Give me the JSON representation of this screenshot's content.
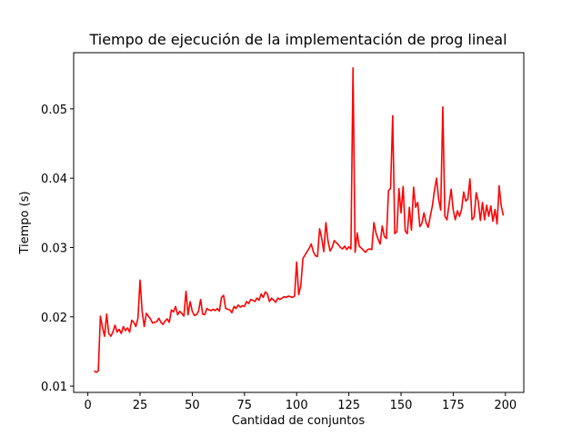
{
  "chart_data": {
    "type": "line",
    "title": "Tiempo de ejecución de la implementación de prog lineal",
    "xlabel": "Cantidad de conjuntos",
    "ylabel": "Tiempo (s)",
    "xlim": [
      -6.8,
      208.8
    ],
    "ylim": [
      0.0091,
      0.0581
    ],
    "xticks": [
      0,
      25,
      50,
      75,
      100,
      125,
      150,
      175,
      200
    ],
    "yticks": [
      0.01,
      0.02,
      0.03,
      0.04,
      0.05
    ],
    "series": [
      {
        "color": "#ff0000",
        "x": [
          3,
          4,
          5,
          6,
          7,
          8,
          9,
          10,
          11,
          12,
          13,
          14,
          15,
          16,
          17,
          18,
          19,
          20,
          21,
          22,
          23,
          24,
          25,
          26,
          27,
          28,
          29,
          30,
          31,
          32,
          33,
          34,
          35,
          36,
          37,
          38,
          39,
          40,
          41,
          42,
          43,
          44,
          45,
          46,
          47,
          48,
          49,
          50,
          51,
          52,
          53,
          54,
          55,
          56,
          57,
          58,
          59,
          60,
          61,
          62,
          63,
          64,
          65,
          66,
          67,
          68,
          69,
          70,
          71,
          72,
          73,
          74,
          75,
          76,
          77,
          78,
          79,
          80,
          81,
          82,
          83,
          84,
          85,
          86,
          87,
          88,
          89,
          90,
          91,
          92,
          93,
          94,
          95,
          96,
          97,
          98,
          99,
          100,
          101,
          102,
          103,
          104,
          105,
          106,
          107,
          108,
          109,
          110,
          111,
          112,
          113,
          114,
          115,
          116,
          117,
          118,
          119,
          120,
          121,
          122,
          123,
          124,
          125,
          126,
          127,
          128,
          129,
          130,
          131,
          132,
          133,
          134,
          135,
          136,
          137,
          138,
          139,
          140,
          141,
          142,
          143,
          144,
          145,
          146,
          147,
          148,
          149,
          150,
          151,
          152,
          153,
          154,
          155,
          156,
          157,
          158,
          159,
          160,
          161,
          162,
          163,
          164,
          165,
          166,
          167,
          168,
          169,
          170,
          171,
          172,
          173,
          174,
          175,
          176,
          177,
          178,
          179,
          180,
          181,
          182,
          183,
          184,
          185,
          186,
          187,
          188,
          189,
          190,
          191,
          192,
          193,
          194,
          195,
          196,
          197,
          198,
          199
        ],
        "values": [
          0.0122,
          0.012,
          0.0122,
          0.0201,
          0.0185,
          0.0172,
          0.0204,
          0.0176,
          0.0172,
          0.0178,
          0.0188,
          0.0178,
          0.0182,
          0.0176,
          0.0186,
          0.018,
          0.0184,
          0.0178,
          0.0195,
          0.0192,
          0.0186,
          0.0198,
          0.0253,
          0.0208,
          0.0186,
          0.0205,
          0.0201,
          0.0197,
          0.0191,
          0.0192,
          0.0193,
          0.0198,
          0.0192,
          0.0189,
          0.0194,
          0.0197,
          0.0192,
          0.021,
          0.0207,
          0.0215,
          0.0203,
          0.0208,
          0.0205,
          0.0201,
          0.0237,
          0.0203,
          0.0222,
          0.0208,
          0.0202,
          0.0203,
          0.0208,
          0.0225,
          0.0204,
          0.0203,
          0.0212,
          0.021,
          0.0209,
          0.0211,
          0.0209,
          0.0212,
          0.0208,
          0.0228,
          0.0231,
          0.0212,
          0.0211,
          0.021,
          0.0206,
          0.0215,
          0.0212,
          0.0217,
          0.0214,
          0.0216,
          0.0215,
          0.0222,
          0.0219,
          0.0225,
          0.0224,
          0.0222,
          0.0227,
          0.0224,
          0.0233,
          0.0228,
          0.0236,
          0.0233,
          0.0222,
          0.0227,
          0.0224,
          0.0221,
          0.0227,
          0.0225,
          0.0227,
          0.0229,
          0.0228,
          0.023,
          0.0229,
          0.0228,
          0.023,
          0.0279,
          0.0232,
          0.0245,
          0.0284,
          0.0289,
          0.0294,
          0.0299,
          0.0305,
          0.0294,
          0.0288,
          0.0287,
          0.0327,
          0.0313,
          0.0294,
          0.0336,
          0.031,
          0.0295,
          0.03,
          0.031,
          0.0307,
          0.0304,
          0.03,
          0.0298,
          0.0302,
          0.0297,
          0.0301,
          0.0298,
          0.0559,
          0.0293,
          0.0321,
          0.0302,
          0.0299,
          0.0296,
          0.0293,
          0.0297,
          0.0298,
          0.0297,
          0.0336,
          0.0321,
          0.0312,
          0.0305,
          0.0331,
          0.0316,
          0.0313,
          0.0382,
          0.0385,
          0.049,
          0.032,
          0.0323,
          0.0385,
          0.035,
          0.0388,
          0.0324,
          0.032,
          0.0358,
          0.0325,
          0.0387,
          0.0358,
          0.0365,
          0.033,
          0.0335,
          0.035,
          0.0336,
          0.0329,
          0.0345,
          0.036,
          0.0382,
          0.04,
          0.037,
          0.0354,
          0.0503,
          0.0345,
          0.034,
          0.0362,
          0.0384,
          0.0354,
          0.034,
          0.0353,
          0.0345,
          0.0355,
          0.038,
          0.0367,
          0.037,
          0.0399,
          0.034,
          0.0344,
          0.0379,
          0.0366,
          0.0339,
          0.0365,
          0.034,
          0.0361,
          0.0345,
          0.036,
          0.0338,
          0.0355,
          0.0334,
          0.0389,
          0.036,
          0.0346
        ]
      }
    ]
  }
}
